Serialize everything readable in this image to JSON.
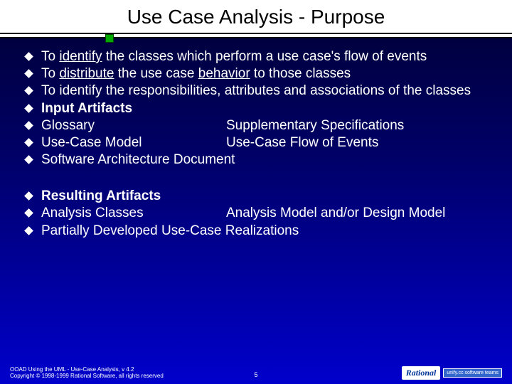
{
  "title": "Use Case Analysis - Purpose",
  "bullets_group1": [
    {
      "html": "To <span class='underline'>identify</span> the classes which perform a use case's flow of events"
    },
    {
      "html": "To <span class='underline'>distribute</span> the use case <span class='underline'>behavior</span> to those classes"
    },
    {
      "html": "To identify the responsibilities, attributes and associations of the classes"
    },
    {
      "html": "<span class='bold'>Input Artifacts</span>"
    },
    {
      "twocol": {
        "a": "Glossary",
        "b": "Supplementary Specifications"
      }
    },
    {
      "twocol": {
        "a": "Use-Case Model",
        "b": "Use-Case Flow of Events"
      }
    },
    {
      "html": "Software Architecture Document"
    }
  ],
  "bullets_group2": [
    {
      "html": "<span class='bold'>Resulting Artifacts</span>"
    },
    {
      "twocol": {
        "a": "Analysis Classes",
        "b": "Analysis Model and/or Design Model"
      }
    },
    {
      "html": "Partially Developed Use-Case Realizations"
    }
  ],
  "footer": {
    "line1": "OOAD Using the UML - Use-Case Analysis, v 4.2",
    "line2": "Copyright © 1998-1999 Rational Software, all rights reserved",
    "page": "5",
    "logo_main": "Rational",
    "logo_sub": "unify.cc software teams"
  },
  "colors": {
    "bg_top": "#000033",
    "bg_bottom": "#0000cc",
    "text": "#ffffff",
    "title_text": "#000000"
  }
}
